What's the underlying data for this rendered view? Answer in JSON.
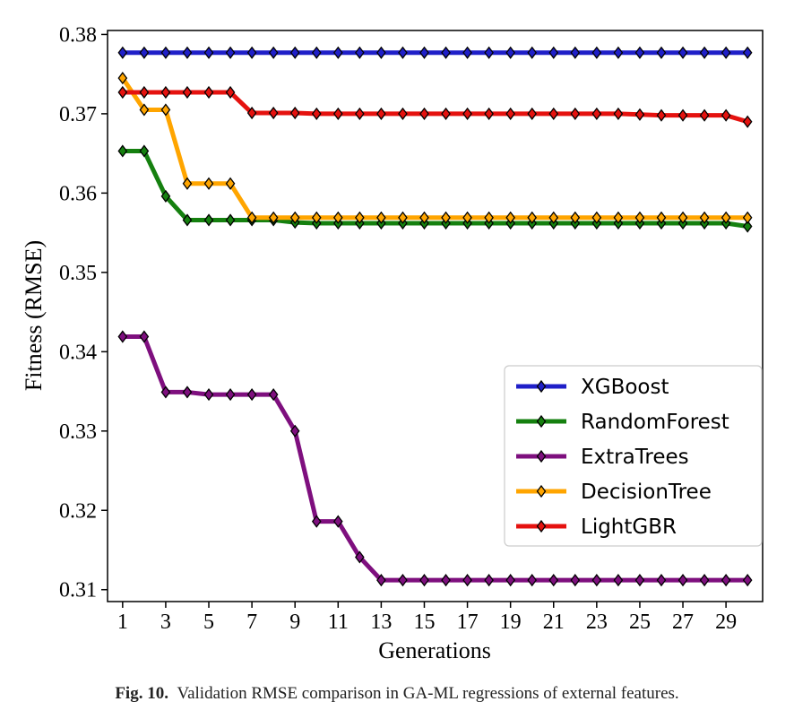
{
  "chart_data": {
    "type": "line",
    "title": "",
    "xlabel": "Generations",
    "ylabel": "Fitness (RMSE)",
    "xlim": [
      0.3,
      30.7
    ],
    "ylim": [
      0.3085,
      0.3805
    ],
    "x": [
      1,
      2,
      3,
      4,
      5,
      6,
      7,
      8,
      9,
      10,
      11,
      12,
      13,
      14,
      15,
      16,
      17,
      18,
      19,
      20,
      21,
      22,
      23,
      24,
      25,
      26,
      27,
      28,
      29,
      30
    ],
    "x_ticks": [
      1,
      3,
      5,
      7,
      9,
      11,
      13,
      15,
      17,
      19,
      21,
      23,
      25,
      27,
      29
    ],
    "x_tick_labels": [
      "1",
      "3",
      "5",
      "7",
      "9",
      "11",
      "13",
      "15",
      "17",
      "19",
      "21",
      "23",
      "25",
      "27",
      "29"
    ],
    "y_ticks": [
      0.31,
      0.32,
      0.33,
      0.34,
      0.35,
      0.36,
      0.37,
      0.38
    ],
    "y_tick_labels": [
      "0.31",
      "0.32",
      "0.33",
      "0.34",
      "0.35",
      "0.36",
      "0.37",
      "0.38"
    ],
    "grid": false,
    "legend_position": "lower-right",
    "series": [
      {
        "name": "XGBoost",
        "color": "#1f1fc8",
        "values": [
          0.3777,
          0.3777,
          0.3777,
          0.3777,
          0.3777,
          0.3777,
          0.3777,
          0.3777,
          0.3777,
          0.3777,
          0.3777,
          0.3777,
          0.3777,
          0.3777,
          0.3777,
          0.3777,
          0.3777,
          0.3777,
          0.3777,
          0.3777,
          0.3777,
          0.3777,
          0.3777,
          0.3777,
          0.3777,
          0.3777,
          0.3777,
          0.3777,
          0.3777,
          0.3777
        ]
      },
      {
        "name": "RandomForest",
        "color": "#15800f",
        "values": [
          0.3653,
          0.3653,
          0.3596,
          0.3566,
          0.3566,
          0.3566,
          0.3566,
          0.3566,
          0.3563,
          0.3562,
          0.3562,
          0.3562,
          0.3562,
          0.3562,
          0.3562,
          0.3562,
          0.3562,
          0.3562,
          0.3562,
          0.3562,
          0.3562,
          0.3562,
          0.3562,
          0.3562,
          0.3562,
          0.3562,
          0.3562,
          0.3562,
          0.3562,
          0.3558
        ]
      },
      {
        "name": "ExtraTrees",
        "color": "#7e0f7e",
        "values": [
          0.3419,
          0.3419,
          0.3349,
          0.3349,
          0.3346,
          0.3346,
          0.3346,
          0.3346,
          0.33,
          0.3186,
          0.3186,
          0.3141,
          0.3112,
          0.3112,
          0.3112,
          0.3112,
          0.3112,
          0.3112,
          0.3112,
          0.3112,
          0.3112,
          0.3112,
          0.3112,
          0.3112,
          0.3112,
          0.3112,
          0.3112,
          0.3112,
          0.3112,
          0.3112
        ]
      },
      {
        "name": "DecisionTree",
        "color": "#ffa500",
        "values": [
          0.3745,
          0.3705,
          0.3705,
          0.3612,
          0.3612,
          0.3612,
          0.3569,
          0.3569,
          0.3569,
          0.3569,
          0.3569,
          0.3569,
          0.3569,
          0.3569,
          0.3569,
          0.3569,
          0.3569,
          0.3569,
          0.3569,
          0.3569,
          0.3569,
          0.3569,
          0.3569,
          0.3569,
          0.3569,
          0.3569,
          0.3569,
          0.3569,
          0.3569,
          0.3569
        ]
      },
      {
        "name": "LightGBR",
        "color": "#e5120f",
        "values": [
          0.3727,
          0.3727,
          0.3727,
          0.3727,
          0.3727,
          0.3727,
          0.3701,
          0.3701,
          0.3701,
          0.37,
          0.37,
          0.37,
          0.37,
          0.37,
          0.37,
          0.37,
          0.37,
          0.37,
          0.37,
          0.37,
          0.37,
          0.37,
          0.37,
          0.37,
          0.3699,
          0.3698,
          0.3698,
          0.3698,
          0.3698,
          0.369
        ]
      }
    ]
  },
  "caption": {
    "label": "Fig. 10.",
    "text": "Validation RMSE comparison in GA-ML regressions of external features."
  }
}
